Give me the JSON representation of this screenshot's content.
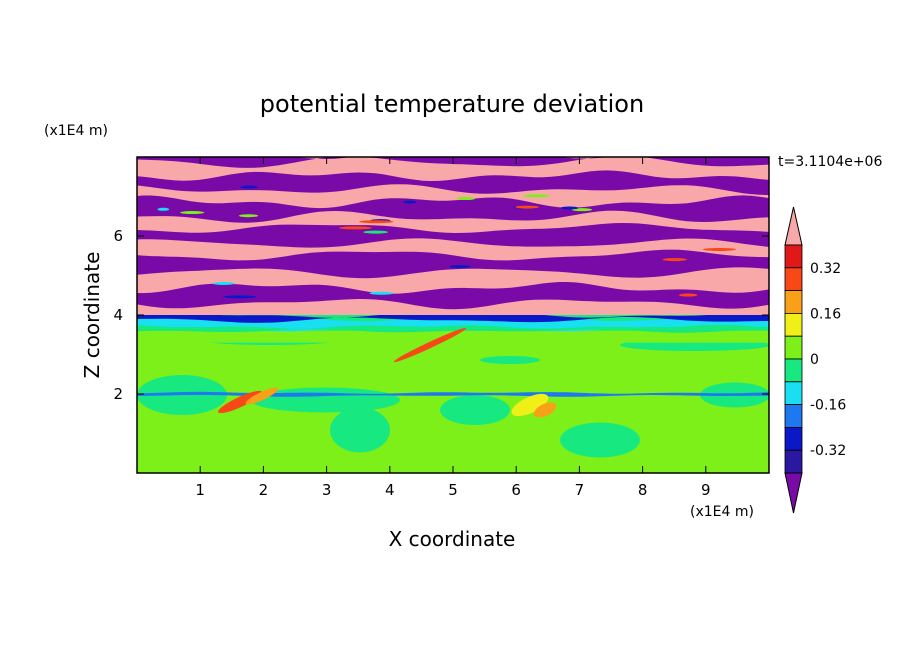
{
  "chart_data": {
    "type": "heatmap",
    "title": "potential temperature deviation",
    "xlabel": "X coordinate",
    "ylabel": "Z coordinate",
    "x_unit": "(x1E4 m)",
    "y_unit": "(x1E4 m)",
    "time_label": "t=3.1104e+06",
    "xlim": [
      0,
      10
    ],
    "ylim": [
      0,
      8
    ],
    "x_ticks": [
      1,
      2,
      3,
      4,
      5,
      6,
      7,
      8,
      9
    ],
    "y_ticks": [
      2,
      4,
      6
    ],
    "colorbar": {
      "levels": [
        -0.4,
        -0.32,
        -0.24,
        -0.16,
        -0.08,
        0,
        0.08,
        0.16,
        0.24,
        0.32,
        0.4
      ],
      "labels": [
        "0.32",
        "0.16",
        "0",
        "-0.16",
        "-0.32"
      ],
      "colors": [
        "#7a0aa8",
        "#2a18a0",
        "#0a18c8",
        "#1e78f0",
        "#18e0f0",
        "#18e880",
        "#7cf018",
        "#f0f018",
        "#f8a018",
        "#f84818",
        "#e01818",
        "#f8a8a8"
      ]
    },
    "field_regions": [
      {
        "z_range": [
          0,
          3.6
        ],
        "level": "0 to 0.08",
        "note": "lower layer mostly -0.08 to 0 and 0 to 0.08"
      },
      {
        "z_range": [
          3.6,
          4.0
        ],
        "level": "-0.16 to -0.32",
        "note": "thin negative band"
      },
      {
        "z_range": [
          4.0,
          8.0
        ],
        "level": "alternating below -0.4 and above 0.4",
        "note": "stratified bands in the upper layer"
      }
    ]
  }
}
